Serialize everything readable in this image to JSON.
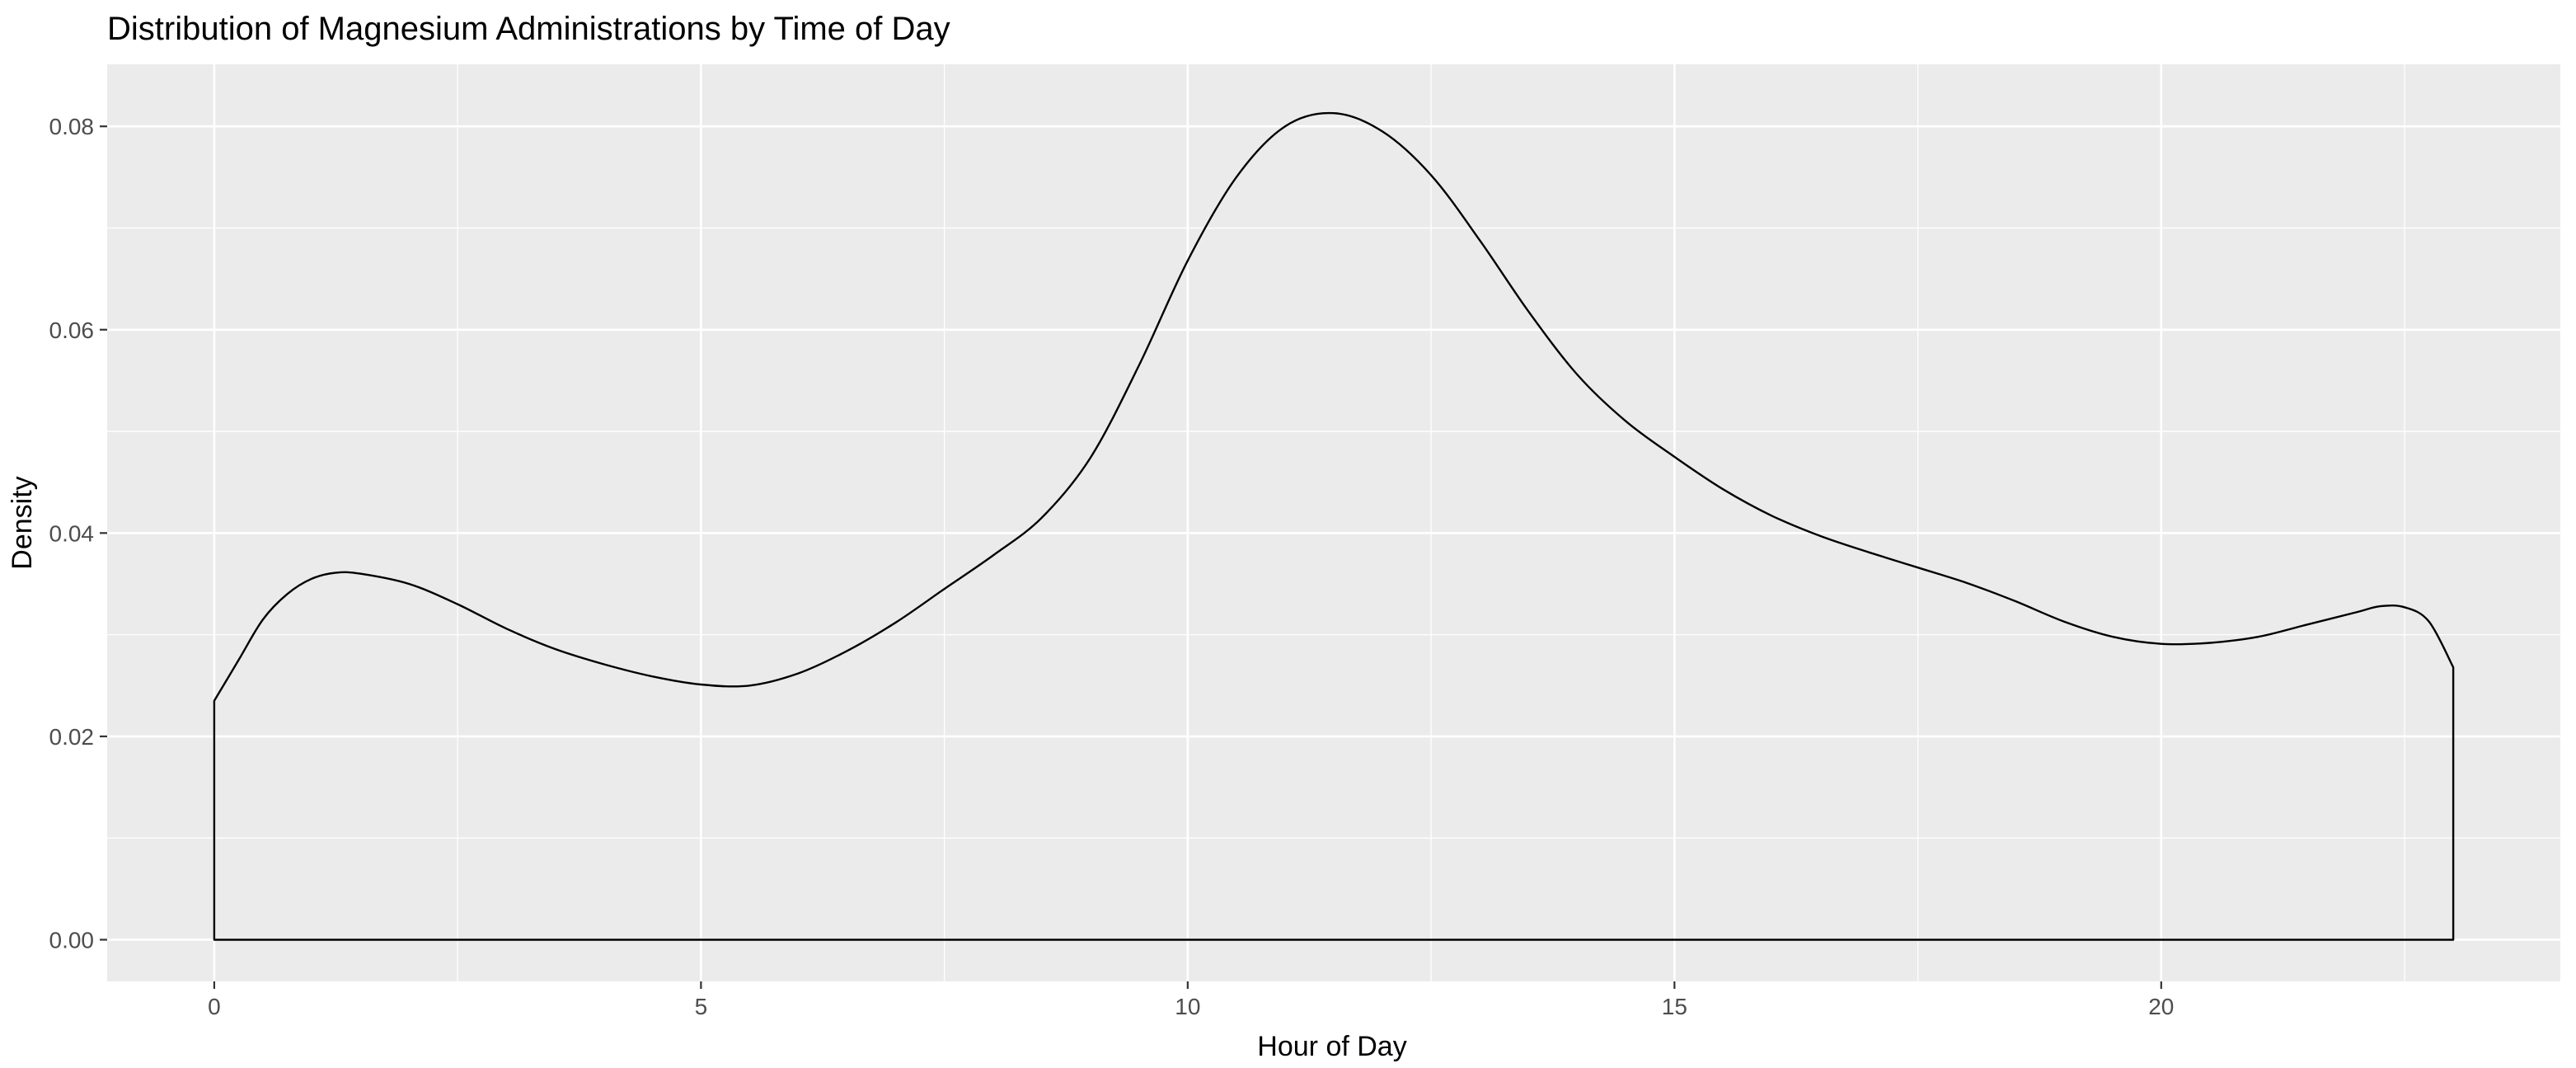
{
  "chart_data": {
    "type": "area",
    "title": "Distribution of Magnesium Administrations by Time of Day",
    "xlabel": "Hour of Day",
    "ylabel": "Density",
    "xlim": [
      -1.1,
      24.1
    ],
    "ylim": [
      -0.0041,
      0.0861
    ],
    "x_ticks": [
      0,
      5,
      10,
      15,
      20
    ],
    "x_tick_labels": [
      "0",
      "5",
      "10",
      "15",
      "20"
    ],
    "y_ticks": [
      0,
      0.02,
      0.04,
      0.06,
      0.08
    ],
    "y_tick_labels": [
      "0.00",
      "0.02",
      "0.04",
      "0.06",
      "0.08"
    ],
    "grid": true,
    "legend": "none",
    "fill": "none",
    "line_color": "#000000",
    "panel_color": "#ebebeb",
    "grid_color": "#ffffff",
    "series": [
      {
        "x": [
          0,
          0.25,
          0.5,
          0.75,
          1.0,
          1.25,
          1.5,
          2.0,
          2.5,
          3.0,
          3.5,
          4.0,
          4.5,
          5.0,
          5.5,
          6.0,
          6.5,
          7.0,
          7.5,
          8.0,
          8.5,
          9.0,
          9.5,
          10.0,
          10.5,
          11.0,
          11.5,
          12.0,
          12.5,
          13.0,
          13.5,
          14.0,
          14.5,
          15.0,
          15.5,
          16.0,
          16.5,
          17.0,
          17.5,
          18.0,
          18.5,
          19.0,
          19.5,
          20.0,
          20.5,
          21.0,
          21.5,
          22.0,
          22.25,
          22.5,
          22.75,
          23.0
        ],
        "y": [
          0.0235,
          0.0275,
          0.0315,
          0.034,
          0.0355,
          0.0361,
          0.036,
          0.035,
          0.033,
          0.0306,
          0.0286,
          0.0271,
          0.0259,
          0.0251,
          0.025,
          0.0262,
          0.0284,
          0.0312,
          0.0345,
          0.0378,
          0.0415,
          0.0474,
          0.0565,
          0.0668,
          0.075,
          0.08,
          0.0813,
          0.0795,
          0.0752,
          0.0688,
          0.0618,
          0.0556,
          0.051,
          0.0475,
          0.0443,
          0.0417,
          0.0397,
          0.0381,
          0.0366,
          0.0351,
          0.0333,
          0.0313,
          0.0298,
          0.0291,
          0.0292,
          0.0298,
          0.031,
          0.0322,
          0.0328,
          0.0327,
          0.0313,
          0.0268
        ]
      }
    ]
  }
}
